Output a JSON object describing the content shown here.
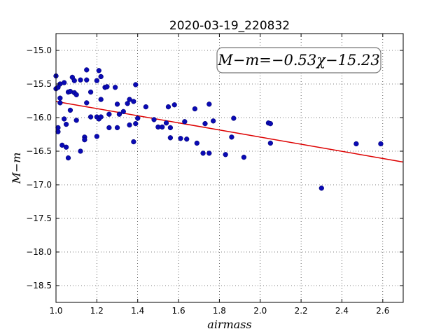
{
  "chart_data": {
    "type": "scatter",
    "title": "2020-03-19_220832",
    "xlabel": "airmass",
    "ylabel": "M−m",
    "xlim": [
      1.0,
      2.7
    ],
    "ylim": [
      -18.75,
      -14.75
    ],
    "y_inverted": false,
    "grid": true,
    "x_ticks": [
      1.0,
      1.2,
      1.4,
      1.6,
      1.8,
      2.0,
      2.2,
      2.4,
      2.6
    ],
    "x_tick_labels": [
      "1.0",
      "1.2",
      "1.4",
      "1.6",
      "1.8",
      "2.0",
      "2.2",
      "2.4",
      "2.6"
    ],
    "y_ticks": [
      -15.0,
      -15.5,
      -16.0,
      -16.5,
      -17.0,
      -17.5,
      -18.0,
      -18.5
    ],
    "y_tick_labels": [
      "−15.0",
      "−15.5",
      "−16.0",
      "−16.5",
      "−17.0",
      "−17.5",
      "−18.0",
      "−18.5"
    ],
    "annotation": "M−m=−0.53χ−15.23",
    "fit": {
      "slope": -0.53,
      "intercept": -15.23,
      "color": "#dd0000"
    },
    "point_color": "#0a0ab4",
    "points": [
      [
        1.0,
        -15.38
      ],
      [
        1.0,
        -15.57
      ],
      [
        1.01,
        -15.55
      ],
      [
        1.01,
        -16.15
      ],
      [
        1.01,
        -16.21
      ],
      [
        1.02,
        -15.5
      ],
      [
        1.02,
        -15.71
      ],
      [
        1.02,
        -15.78
      ],
      [
        1.03,
        -16.41
      ],
      [
        1.04,
        -16.02
      ],
      [
        1.04,
        -15.48
      ],
      [
        1.05,
        -16.1
      ],
      [
        1.05,
        -16.44
      ],
      [
        1.06,
        -16.6
      ],
      [
        1.06,
        -15.62
      ],
      [
        1.07,
        -15.89
      ],
      [
        1.07,
        -15.61
      ],
      [
        1.08,
        -15.4
      ],
      [
        1.09,
        -15.45
      ],
      [
        1.09,
        -15.63
      ],
      [
        1.1,
        -15.66
      ],
      [
        1.1,
        -16.04
      ],
      [
        1.12,
        -16.5
      ],
      [
        1.12,
        -15.44
      ],
      [
        1.14,
        -16.29
      ],
      [
        1.14,
        -16.33
      ],
      [
        1.15,
        -15.29
      ],
      [
        1.15,
        -15.44
      ],
      [
        1.15,
        -15.78
      ],
      [
        1.17,
        -15.62
      ],
      [
        1.17,
        -15.99
      ],
      [
        1.2,
        -15.99
      ],
      [
        1.2,
        -16.28
      ],
      [
        1.2,
        -15.45
      ],
      [
        1.21,
        -15.3
      ],
      [
        1.21,
        -16.02
      ],
      [
        1.22,
        -15.39
      ],
      [
        1.22,
        -15.73
      ],
      [
        1.22,
        -15.99
      ],
      [
        1.24,
        -15.55
      ],
      [
        1.25,
        -15.54
      ],
      [
        1.26,
        -15.95
      ],
      [
        1.26,
        -16.15
      ],
      [
        1.29,
        -15.55
      ],
      [
        1.3,
        -15.8
      ],
      [
        1.3,
        -16.15
      ],
      [
        1.31,
        -15.95
      ],
      [
        1.33,
        -15.91
      ],
      [
        1.35,
        -15.79
      ],
      [
        1.36,
        -15.73
      ],
      [
        1.36,
        -16.11
      ],
      [
        1.38,
        -16.36
      ],
      [
        1.38,
        -15.76
      ],
      [
        1.39,
        -15.51
      ],
      [
        1.39,
        -16.09
      ],
      [
        1.4,
        -16.01
      ],
      [
        1.44,
        -15.84
      ],
      [
        1.48,
        -16.03
      ],
      [
        1.5,
        -16.14
      ],
      [
        1.52,
        -16.14
      ],
      [
        1.54,
        -16.08
      ],
      [
        1.55,
        -15.84
      ],
      [
        1.56,
        -16.15
      ],
      [
        1.56,
        -16.3
      ],
      [
        1.58,
        -15.81
      ],
      [
        1.61,
        -16.31
      ],
      [
        1.63,
        -16.06
      ],
      [
        1.64,
        -16.32
      ],
      [
        1.68,
        -15.87
      ],
      [
        1.69,
        -16.38
      ],
      [
        1.72,
        -16.53
      ],
      [
        1.73,
        -16.09
      ],
      [
        1.75,
        -16.53
      ],
      [
        1.75,
        -15.8
      ],
      [
        1.77,
        -16.05
      ],
      [
        1.83,
        -16.55
      ],
      [
        1.86,
        -16.29
      ],
      [
        1.87,
        -16.01
      ],
      [
        1.92,
        -16.59
      ],
      [
        2.04,
        -16.08
      ],
      [
        2.05,
        -16.09
      ],
      [
        2.05,
        -16.38
      ],
      [
        2.3,
        -17.05
      ],
      [
        2.47,
        -16.39
      ],
      [
        2.59,
        -16.39
      ]
    ]
  }
}
